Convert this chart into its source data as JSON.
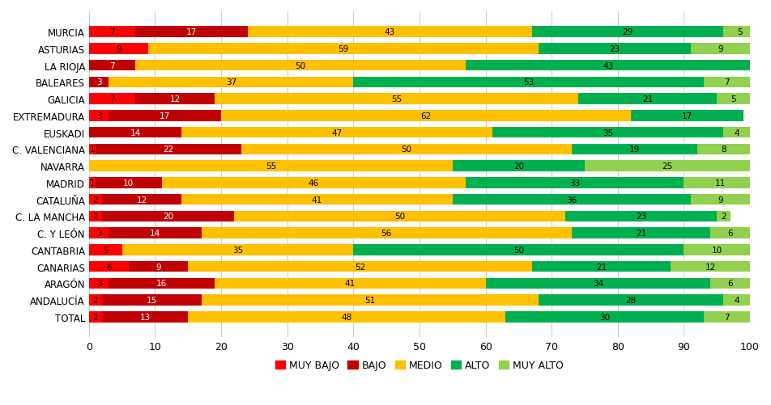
{
  "categories": [
    "MURCIA",
    "ASTURIAS",
    "LA RIOJA",
    "BALEARES",
    "GALICIA",
    "EXTREMADURA",
    "EUSKADI",
    "C. VALENCIANA",
    "NAVARRA",
    "MADRID",
    "CATALUÑA",
    "C. LA MANCHA",
    "C. Y LEÓN",
    "CANTABRIA",
    "CANARIAS",
    "ARAGÓN",
    "ANDALUCÍA",
    "TOTAL"
  ],
  "muy_bajo": [
    7,
    9,
    0,
    0,
    7,
    3,
    0,
    1,
    0,
    1,
    2,
    2,
    3,
    5,
    6,
    3,
    2,
    2
  ],
  "bajo": [
    17,
    0,
    7,
    3,
    12,
    17,
    14,
    22,
    0,
    10,
    12,
    20,
    14,
    0,
    9,
    16,
    15,
    13
  ],
  "medio": [
    43,
    59,
    50,
    37,
    55,
    62,
    47,
    50,
    55,
    46,
    41,
    50,
    56,
    35,
    52,
    41,
    51,
    48
  ],
  "alto": [
    29,
    23,
    43,
    53,
    21,
    17,
    35,
    19,
    20,
    33,
    36,
    23,
    21,
    50,
    21,
    34,
    28,
    30
  ],
  "muy_alto": [
    5,
    9,
    0,
    7,
    5,
    0,
    4,
    8,
    25,
    11,
    9,
    2,
    6,
    10,
    12,
    6,
    4,
    7
  ],
  "colors": {
    "muy_bajo": "#FF0000",
    "bajo": "#C00000",
    "medio": "#FFC000",
    "alto": "#00B050",
    "muy_alto": "#92D050"
  },
  "legend_labels": [
    "MUY BAJO",
    "BAJO",
    "MEDIO",
    "ALTO",
    "MUY ALTO"
  ],
  "xlim": [
    0,
    100
  ],
  "background_color": "#FFFFFF",
  "bar_height": 0.65,
  "value_fontsize": 7.5
}
